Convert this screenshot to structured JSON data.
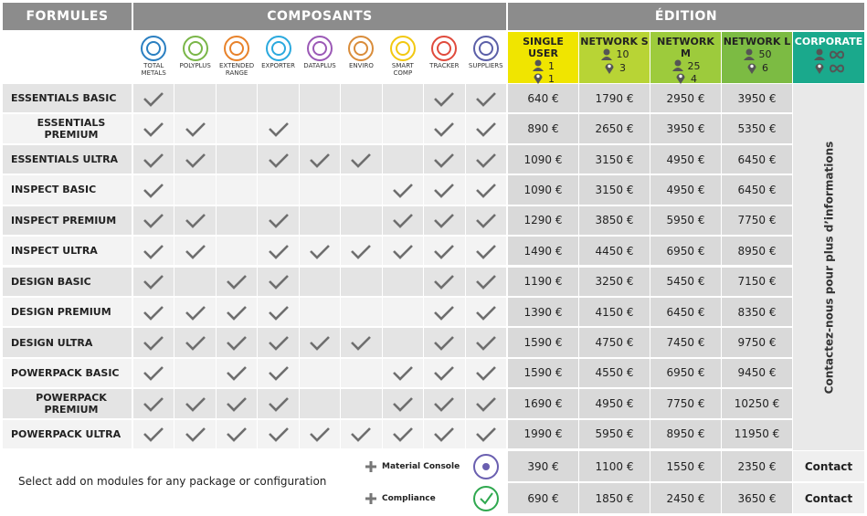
{
  "header": {
    "formules": "FORMULES",
    "composants": "COMPOSANTS",
    "edition": "ÉDITION"
  },
  "components": [
    {
      "label": "TOTAL METALS",
      "color": "#2a7fc1"
    },
    {
      "label": "POLYPLUS",
      "color": "#7ab648"
    },
    {
      "label": "EXTENDED RANGE",
      "color": "#e8822a"
    },
    {
      "label": "EXPORTER",
      "color": "#2aa9de"
    },
    {
      "label": "DATAPLUS",
      "color": "#9b59b6"
    },
    {
      "label": "ENVIRO",
      "color": "#d98c3a"
    },
    {
      "label": "SMART COMP",
      "color": "#f2c811"
    },
    {
      "label": "TRACKER",
      "color": "#e04a3c"
    },
    {
      "label": "SUPPLIERS",
      "color": "#5b5fa8"
    }
  ],
  "editions": [
    {
      "name": "SINGLE USER",
      "users": 1,
      "locations": 1,
      "color": "#f0e500"
    },
    {
      "name": "NETWORK S",
      "users": 10,
      "locations": 3,
      "color": "#b8d435"
    },
    {
      "name": "NETWORK M",
      "users": 25,
      "locations": 4,
      "color": "#9dcb3c"
    },
    {
      "name": "NETWORK L",
      "users": 50,
      "locations": 6,
      "color": "#7cbb43"
    },
    {
      "name": "CORPORATE",
      "color": "#1aa98c"
    }
  ],
  "rows": [
    {
      "name": "ESSENTIALS BASIC",
      "checks": [
        true,
        false,
        false,
        false,
        false,
        false,
        false,
        true,
        true
      ],
      "prices": [
        "640 €",
        "1790 €",
        "2950 €",
        "3950 €"
      ]
    },
    {
      "name": "ESSENTIALS PREMIUM",
      "checks": [
        true,
        true,
        false,
        true,
        false,
        false,
        false,
        true,
        true
      ],
      "prices": [
        "890 €",
        "2650 €",
        "3950 €",
        "5350 €"
      ]
    },
    {
      "name": "ESSENTIALS ULTRA",
      "checks": [
        true,
        true,
        false,
        true,
        true,
        true,
        false,
        true,
        true
      ],
      "prices": [
        "1090 €",
        "3150 €",
        "4950 €",
        "6450 €"
      ]
    },
    {
      "name": "INSPECT BASIC",
      "checks": [
        true,
        false,
        false,
        false,
        false,
        false,
        true,
        true,
        true
      ],
      "prices": [
        "1090 €",
        "3150 €",
        "4950 €",
        "6450 €"
      ]
    },
    {
      "name": "INSPECT PREMIUM",
      "checks": [
        true,
        true,
        false,
        true,
        false,
        false,
        true,
        true,
        true
      ],
      "prices": [
        "1290 €",
        "3850 €",
        "5950 €",
        "7750 €"
      ]
    },
    {
      "name": "INSPECT ULTRA",
      "checks": [
        true,
        true,
        false,
        true,
        true,
        true,
        true,
        true,
        true
      ],
      "prices": [
        "1490 €",
        "4450 €",
        "6950 €",
        "8950 €"
      ]
    },
    {
      "name": "DESIGN BASIC",
      "checks": [
        true,
        false,
        true,
        true,
        false,
        false,
        false,
        true,
        true
      ],
      "prices": [
        "1190 €",
        "3250 €",
        "5450 €",
        "7150 €"
      ]
    },
    {
      "name": "DESIGN PREMIUM",
      "checks": [
        true,
        true,
        true,
        true,
        false,
        false,
        false,
        true,
        true
      ],
      "prices": [
        "1390 €",
        "4150 €",
        "6450 €",
        "8350 €"
      ]
    },
    {
      "name": "DESIGN ULTRA",
      "checks": [
        true,
        true,
        true,
        true,
        true,
        true,
        false,
        true,
        true
      ],
      "prices": [
        "1590 €",
        "4750 €",
        "7450 €",
        "9750 €"
      ]
    },
    {
      "name": "POWERPACK BASIC",
      "checks": [
        true,
        false,
        true,
        true,
        false,
        false,
        true,
        true,
        true
      ],
      "prices": [
        "1590 €",
        "4550 €",
        "6950 €",
        "9450 €"
      ]
    },
    {
      "name": "POWERPACK PREMIUM",
      "checks": [
        true,
        true,
        true,
        true,
        false,
        false,
        true,
        true,
        true
      ],
      "prices": [
        "1690 €",
        "4950 €",
        "7750 €",
        "10250 €"
      ]
    },
    {
      "name": "POWERPACK ULTRA",
      "checks": [
        true,
        true,
        true,
        true,
        true,
        true,
        true,
        true,
        true
      ],
      "prices": [
        "1990 €",
        "5950 €",
        "8950 €",
        "11950 €"
      ]
    }
  ],
  "corporate_note": "Contactez-nous pour plus d’informations",
  "addon_note": "Select add on modules for any package or configuration",
  "addons": [
    {
      "name": "Material Console",
      "prices": [
        "390 €",
        "1100 €",
        "1550 €",
        "2350 €",
        "Contact"
      ]
    },
    {
      "name": "Compliance",
      "prices": [
        "690 €",
        "1850 €",
        "2450 €",
        "3650 €",
        "Contact"
      ]
    }
  ]
}
